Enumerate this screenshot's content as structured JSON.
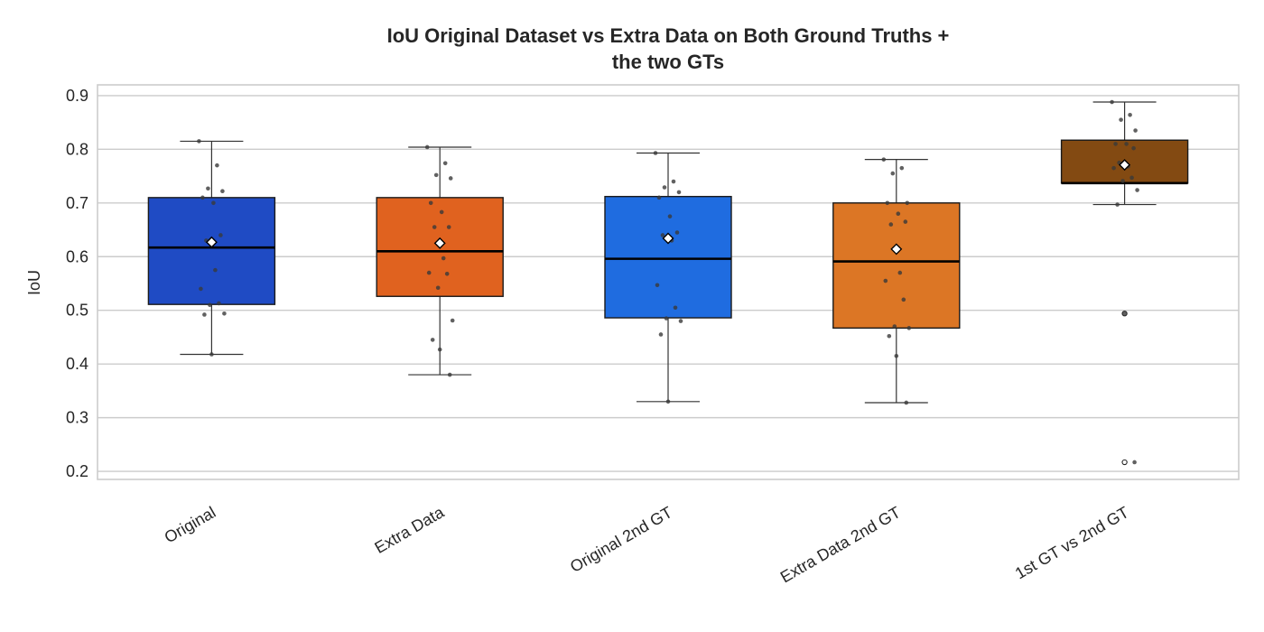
{
  "chart_data": {
    "type": "box",
    "title_line1": "IoU Original Dataset vs Extra Data on Both Ground Truths +",
    "title_line2": "the two GTs",
    "ylabel": "IoU",
    "ylim": [
      0.185,
      0.92
    ],
    "yticks": [
      "0.2",
      "0.3",
      "0.4",
      "0.5",
      "0.6",
      "0.7",
      "0.8",
      "0.9"
    ],
    "grid": true,
    "groups": [
      {
        "label": "Original",
        "color": "#1f4bc4",
        "q1": 0.511,
        "median": 0.617,
        "q3": 0.71,
        "whisker_low": 0.418,
        "whisker_high": 0.815,
        "mean": 0.627,
        "points": [
          0.815,
          0.77,
          0.727,
          0.722,
          0.71,
          0.7,
          0.64,
          0.63,
          0.575,
          0.54,
          0.513,
          0.51,
          0.494,
          0.492,
          0.418
        ],
        "fliers": []
      },
      {
        "label": "Extra Data",
        "color": "#e0621f",
        "q1": 0.526,
        "median": 0.61,
        "q3": 0.71,
        "whisker_low": 0.38,
        "whisker_high": 0.804,
        "mean": 0.625,
        "points": [
          0.804,
          0.774,
          0.752,
          0.746,
          0.7,
          0.683,
          0.655,
          0.655,
          0.597,
          0.57,
          0.568,
          0.542,
          0.481,
          0.445,
          0.427,
          0.38
        ],
        "fliers": []
      },
      {
        "label": "Original 2nd GT",
        "color": "#1f6ce0",
        "q1": 0.486,
        "median": 0.596,
        "q3": 0.712,
        "whisker_low": 0.33,
        "whisker_high": 0.793,
        "mean": 0.634,
        "points": [
          0.793,
          0.74,
          0.729,
          0.72,
          0.71,
          0.675,
          0.645,
          0.64,
          0.63,
          0.547,
          0.505,
          0.485,
          0.48,
          0.455,
          0.33
        ],
        "fliers": []
      },
      {
        "label": "Extra Data 2nd GT",
        "color": "#dc7625",
        "q1": 0.467,
        "median": 0.591,
        "q3": 0.7,
        "whisker_low": 0.328,
        "whisker_high": 0.781,
        "mean": 0.614,
        "points": [
          0.781,
          0.765,
          0.755,
          0.7,
          0.7,
          0.68,
          0.665,
          0.66,
          0.57,
          0.555,
          0.52,
          0.47,
          0.467,
          0.452,
          0.415,
          0.328
        ],
        "fliers": []
      },
      {
        "label": "1st GT vs 2nd GT",
        "color": "#834a12",
        "q1": 0.737,
        "median": 0.737,
        "q3": 0.817,
        "whisker_low": 0.697,
        "whisker_high": 0.888,
        "mean": 0.771,
        "points": [
          0.888,
          0.864,
          0.855,
          0.835,
          0.81,
          0.81,
          0.802,
          0.775,
          0.768,
          0.765,
          0.747,
          0.741,
          0.724,
          0.697,
          0.494,
          0.217
        ],
        "fliers": [
          0.494,
          0.217
        ]
      }
    ]
  }
}
